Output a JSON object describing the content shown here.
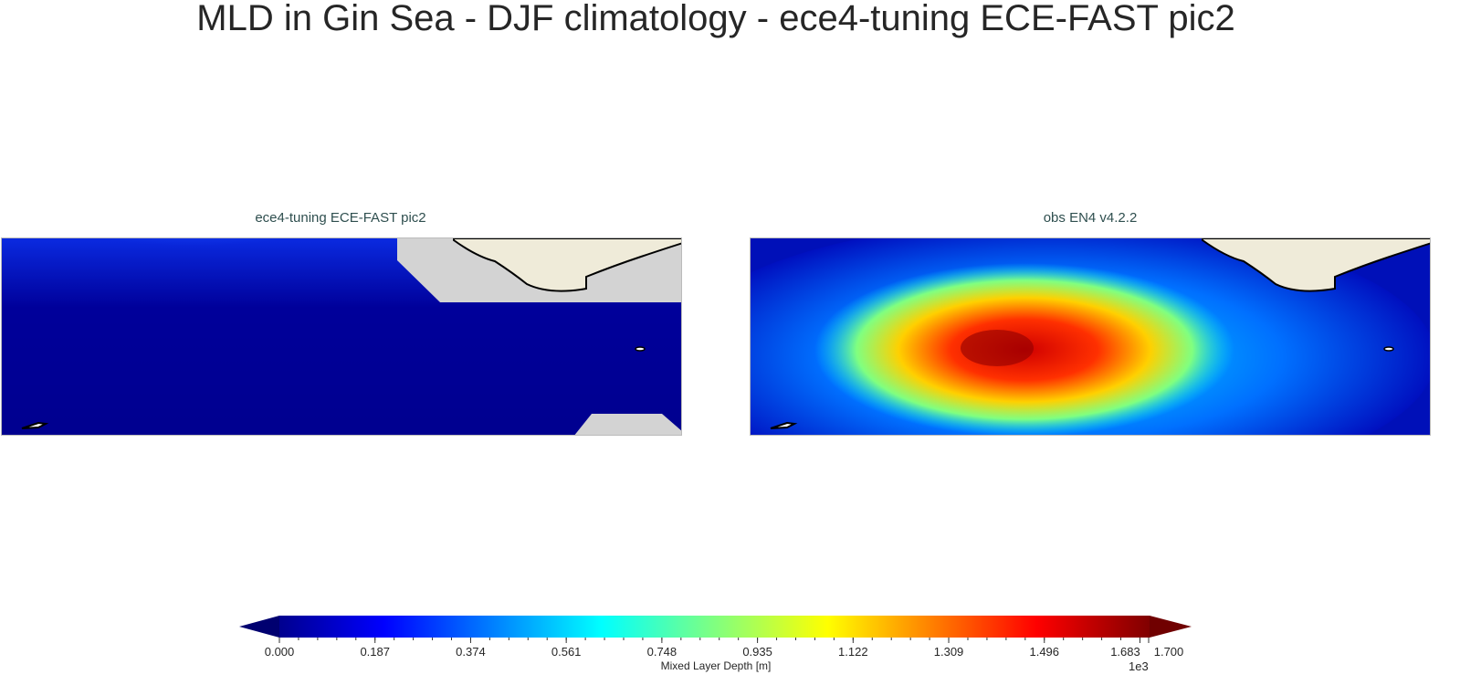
{
  "title": "MLD in Gin Sea - DJF climatology - ece4-tuning ECE-FAST pic2",
  "chart_data": {
    "type": "heatmap",
    "panels": [
      {
        "title": "ece4-tuning ECE-FAST pic2",
        "description_level": "mostly near 0, slightly higher along northern edge"
      },
      {
        "title": "obs EN4 v4.2.2",
        "description_level": "maximum ~1.5e3 m in central basin"
      }
    ],
    "colorbar": {
      "label": "Mixed Layer Depth [m]",
      "exponent": "1e3",
      "min": 0.0,
      "max": 1.7,
      "extend": "both",
      "colormap": "jet",
      "ticks": [
        "0.000",
        "0.187",
        "0.374",
        "0.561",
        "0.748",
        "0.935",
        "1.122",
        "1.309",
        "1.496",
        "1.683",
        "1.700"
      ]
    }
  },
  "colors": {
    "land": "#efebd9",
    "masked": "#d3d3d3",
    "low": "#00008f"
  }
}
